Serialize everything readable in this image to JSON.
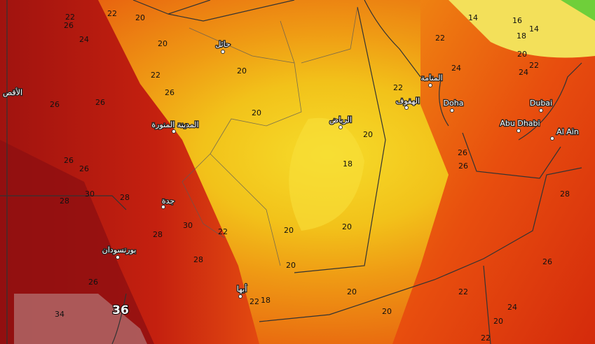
{
  "cities": [
    "الأقص",
    "المدينة المنورة",
    "حائل",
    "الرياض",
    "الهفوف",
    "المنامة",
    "Doha",
    "Dubai",
    "Abu Dhabi",
    "Al Ain",
    "جدة",
    "بورتسودان",
    "أبها"
  ],
  "contour_labels": [
    22,
    22,
    20,
    26,
    24,
    20,
    22,
    26,
    20,
    20,
    26,
    26,
    26,
    26,
    30,
    28,
    28,
    28,
    30,
    22,
    20,
    20,
    18,
    20,
    20,
    20,
    20,
    18,
    22,
    28,
    26,
    34,
    36,
    22,
    24,
    22,
    14,
    16,
    14,
    18,
    20,
    24,
    22,
    26,
    26,
    28,
    26,
    22,
    24,
    20,
    22
  ]
}
